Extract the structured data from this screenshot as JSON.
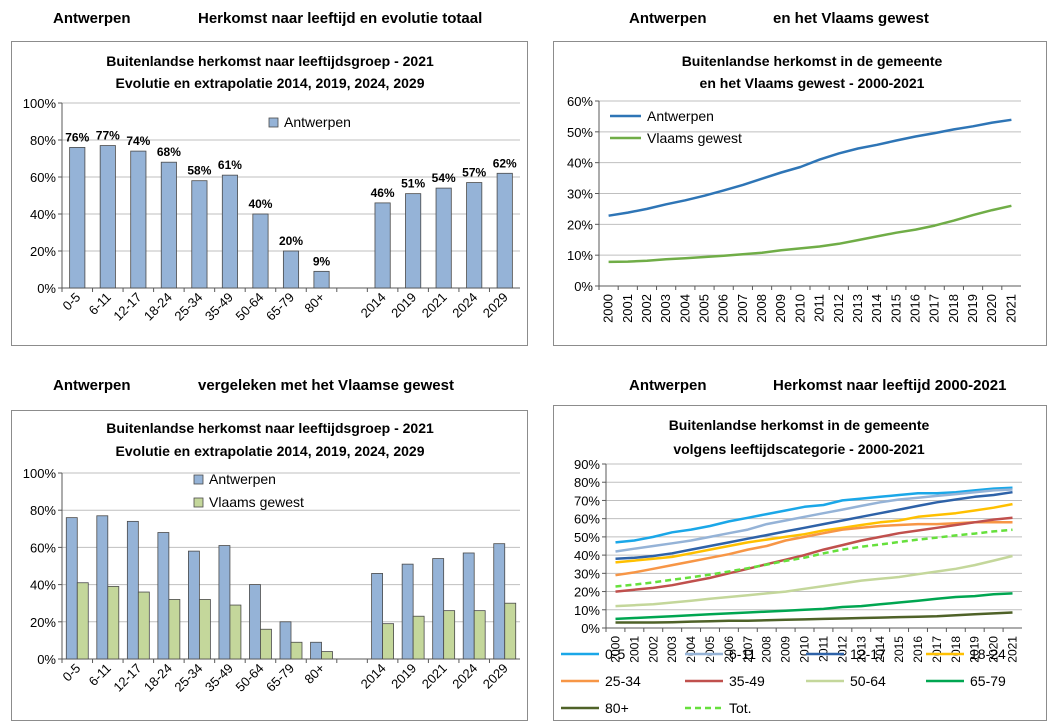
{
  "headers": {
    "q1_city": "Antwerpen",
    "q1_sub": "Herkomst naar leeftijd en evolutie totaal",
    "q2_city": "Antwerpen",
    "q2_sub": "en het Vlaams gewest",
    "q3_city": "Antwerpen",
    "q3_sub": "vergeleken met het Vlaamse gewest",
    "q4_city": "Antwerpen",
    "q4_sub": "Herkomst naar leeftijd 2000-2021"
  },
  "colors": {
    "bar_antwerpen": "#95b3d7",
    "bar_vlaams": "#c4d79b",
    "line_antwerpen": "#2e75b6",
    "line_vlaams": "#70ad47",
    "grid": "#bfbfbf"
  },
  "chart_data": [
    {
      "type": "bar",
      "title": "Buitenlandse herkomst naar leeftijdsgroep - 2021",
      "subtitle": "Evolutie en extrapolatie 2014, 2019, 2024, 2029",
      "categories": [
        "0-5",
        "6-11",
        "12-17",
        "18-24",
        "25-34",
        "35-49",
        "50-64",
        "65-79",
        "80+",
        "",
        "2014",
        "2019",
        "2021",
        "2024",
        "2029"
      ],
      "series": [
        {
          "name": "Antwerpen",
          "values": [
            76,
            77,
            74,
            68,
            58,
            61,
            40,
            20,
            9,
            null,
            46,
            51,
            54,
            57,
            62
          ]
        }
      ],
      "data_labels": [
        "76%",
        "77%",
        "74%",
        "68%",
        "58%",
        "61%",
        "40%",
        "20%",
        "9%",
        "",
        "46%",
        "51%",
        "54%",
        "57%",
        "62%"
      ],
      "y_ticks": [
        "0%",
        "20%",
        "40%",
        "60%",
        "80%",
        "100%"
      ],
      "ylim": [
        0,
        100
      ],
      "grid": true,
      "legend": "top-center"
    },
    {
      "type": "line",
      "title": "Buitenlandse herkomst  in de gemeente",
      "subtitle": "en het Vlaams gewest - 2000-2021",
      "x": [
        "2000",
        "2001",
        "2002",
        "2003",
        "2004",
        "2005",
        "2006",
        "2007",
        "2008",
        "2009",
        "2010",
        "2011",
        "2012",
        "2013",
        "2014",
        "2015",
        "2016",
        "2017",
        "2018",
        "2019",
        "2020",
        "2021"
      ],
      "series": [
        {
          "name": "Antwerpen",
          "values": [
            22.8,
            23.8,
            25.0,
            26.5,
            27.8,
            29.3,
            31.0,
            32.8,
            34.8,
            36.8,
            38.6,
            41.0,
            43.0,
            44.6,
            45.8,
            47.2,
            48.5,
            49.6,
            50.8,
            51.8,
            53.0,
            53.9
          ]
        },
        {
          "name": "Vlaams gewest",
          "values": [
            7.8,
            7.9,
            8.2,
            8.7,
            9.0,
            9.4,
            9.8,
            10.3,
            10.8,
            11.6,
            12.2,
            12.8,
            13.7,
            14.9,
            16.1,
            17.3,
            18.3,
            19.6,
            21.2,
            23.0,
            24.6,
            26.0
          ]
        }
      ],
      "y_ticks": [
        "0%",
        "10%",
        "20%",
        "30%",
        "40%",
        "50%",
        "60%"
      ],
      "ylim": [
        0,
        60
      ],
      "grid": true,
      "legend": "top-left"
    },
    {
      "type": "bar",
      "title": "Buitenlandse herkomst naar leeftijdsgroep - 2021",
      "subtitle": "Evolutie en extrapolatie 2014, 2019, 2024, 2029",
      "categories": [
        "0-5",
        "6-11",
        "12-17",
        "18-24",
        "25-34",
        "35-49",
        "50-64",
        "65-79",
        "80+",
        "",
        "2014",
        "2019",
        "2021",
        "2024",
        "2029"
      ],
      "series": [
        {
          "name": "Antwerpen",
          "values": [
            76,
            77,
            74,
            68,
            58,
            61,
            40,
            20,
            9,
            null,
            46,
            51,
            54,
            57,
            62
          ]
        },
        {
          "name": "Vlaams gewest",
          "values": [
            41,
            39,
            36,
            32,
            32,
            29,
            16,
            9,
            4,
            null,
            19,
            23,
            26,
            26,
            30
          ]
        }
      ],
      "y_ticks": [
        "0%",
        "20%",
        "40%",
        "60%",
        "80%",
        "100%"
      ],
      "ylim": [
        0,
        100
      ],
      "grid": true,
      "legend": "top-center"
    },
    {
      "type": "line",
      "title": "Buitenlandse  herkomst in de gemeente",
      "subtitle": "volgens leeftijdscategorie - 2000-2021",
      "x": [
        "2000",
        "2001",
        "2002",
        "2003",
        "2004",
        "2005",
        "2006",
        "2007",
        "2008",
        "2009",
        "2010",
        "2011",
        "2012",
        "2013",
        "2014",
        "2015",
        "2016",
        "2017",
        "2018",
        "2019",
        "2020",
        "2021"
      ],
      "series": [
        {
          "name": "0-5",
          "color": "#1aa7e8",
          "dash": false,
          "values": [
            47,
            48,
            50,
            52.5,
            54,
            56,
            58.5,
            60.5,
            62.5,
            64.5,
            66.5,
            67.5,
            70,
            71,
            72,
            73,
            74,
            74,
            74.5,
            75.5,
            76.5,
            77
          ]
        },
        {
          "name": "6-11",
          "color": "#95b3d7",
          "dash": false,
          "values": [
            42,
            43.5,
            45,
            46.5,
            48,
            50,
            52,
            54,
            57,
            59,
            61,
            63,
            65,
            67,
            69,
            70.5,
            71.5,
            72.5,
            73.5,
            74.5,
            75.5,
            76
          ]
        },
        {
          "name": "12-17",
          "color": "#2e62a8",
          "dash": false,
          "values": [
            38,
            38.5,
            39.5,
            41,
            43,
            45,
            47,
            49,
            51,
            53,
            55,
            57,
            59,
            61,
            63,
            65,
            67,
            69,
            70.5,
            72,
            73,
            74.5
          ]
        },
        {
          "name": "18-24",
          "color": "#ffc000",
          "dash": false,
          "values": [
            36,
            37,
            38,
            39,
            41,
            43,
            45,
            47,
            48.5,
            50,
            51.5,
            53.5,
            55,
            56.5,
            58,
            59,
            61,
            62,
            63,
            64.5,
            66,
            68
          ]
        },
        {
          "name": "25-34",
          "color": "#f79646",
          "dash": false,
          "values": [
            29,
            30.5,
            32.5,
            34.5,
            36.5,
            38.5,
            40.5,
            43,
            45,
            48,
            50,
            52,
            54,
            55,
            56,
            56.5,
            57,
            57,
            57.5,
            58,
            58,
            58
          ]
        },
        {
          "name": "35-49",
          "color": "#c0504d",
          "dash": false,
          "values": [
            20,
            21,
            22,
            23.5,
            25.5,
            27.5,
            30,
            32.5,
            35,
            37.5,
            40,
            43,
            45.5,
            48,
            50,
            52,
            53.5,
            55,
            56.5,
            58,
            59.5,
            60.5
          ]
        },
        {
          "name": "50-64",
          "color": "#c4d79b",
          "dash": false,
          "values": [
            12,
            12.5,
            13,
            14,
            15,
            16,
            17,
            18,
            19,
            20,
            21.5,
            23,
            24.5,
            26,
            27,
            28,
            29.5,
            31,
            32.5,
            34.5,
            37,
            39.5
          ]
        },
        {
          "name": "65-79",
          "color": "#00a651",
          "dash": false,
          "values": [
            5,
            5.5,
            6,
            6.5,
            7,
            7.5,
            8,
            8.5,
            9,
            9.5,
            10,
            10.5,
            11.5,
            12,
            13,
            14,
            15,
            16,
            17,
            17.5,
            18.5,
            19
          ]
        },
        {
          "name": "80+",
          "color": "#4f6228",
          "dash": false,
          "values": [
            3,
            3,
            3,
            3.2,
            3.5,
            3.7,
            4,
            4,
            4.2,
            4.5,
            4.7,
            5,
            5.2,
            5.5,
            5.7,
            6,
            6.2,
            6.5,
            7,
            7.5,
            8,
            8.5
          ]
        },
        {
          "name": "Tot.",
          "color": "#66e03c",
          "dash": true,
          "values": [
            22.8,
            23.8,
            25,
            26.5,
            27.8,
            29.3,
            31,
            32.8,
            34.8,
            36.8,
            38.6,
            41,
            43,
            44.6,
            45.8,
            47.2,
            48.5,
            49.6,
            50.8,
            51.8,
            53,
            53.9
          ]
        }
      ],
      "y_ticks": [
        "0%",
        "10%",
        "20%",
        "30%",
        "40%",
        "50%",
        "60%",
        "70%",
        "80%",
        "90%"
      ],
      "ylim": [
        0,
        90
      ],
      "grid": true,
      "legend": "bottom"
    }
  ]
}
